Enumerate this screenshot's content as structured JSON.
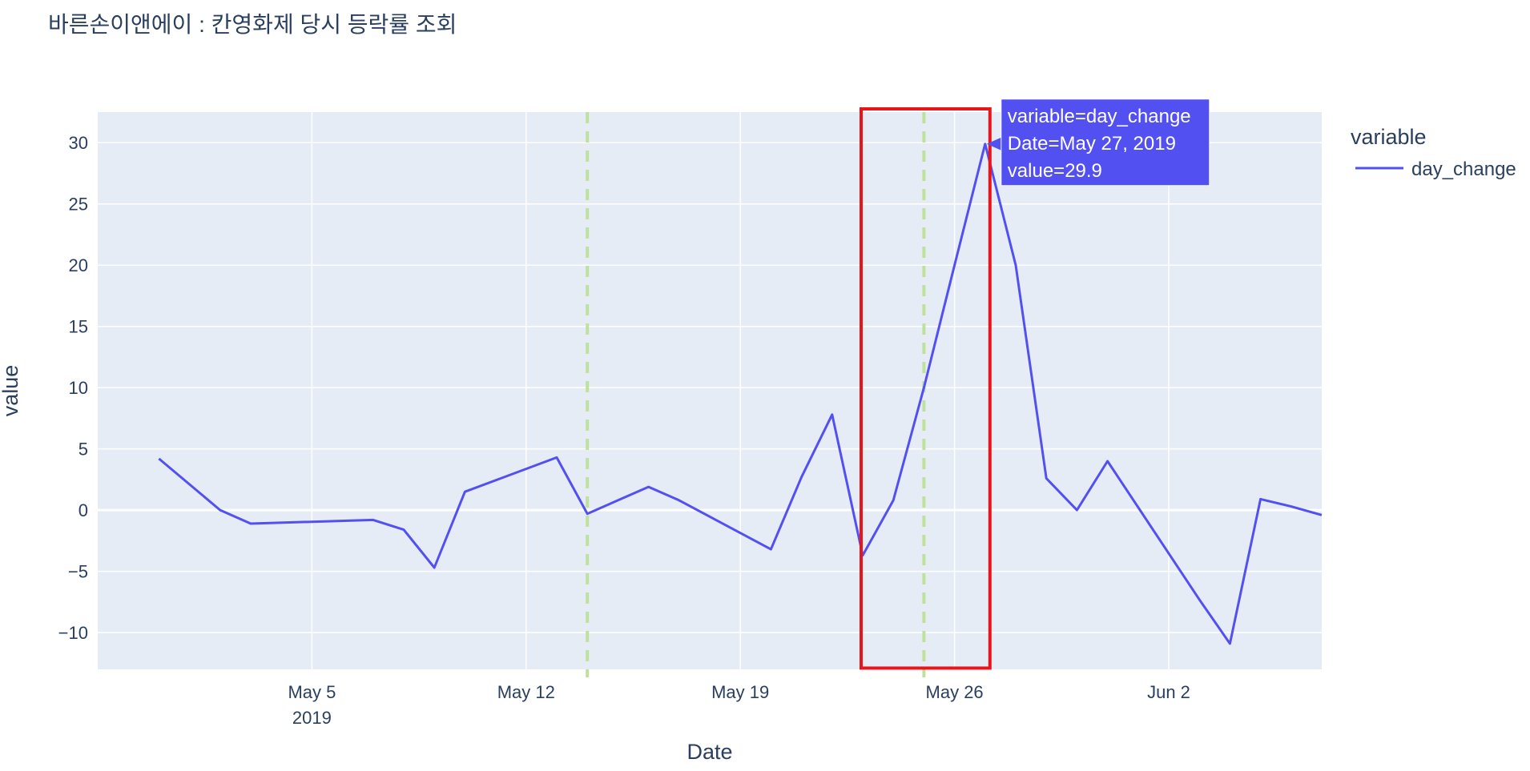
{
  "chart_data": {
    "type": "line",
    "title": "바른손이앤에이 : 칸영화제 당시 등락률 조회",
    "xlabel": "Date",
    "ylabel": "value",
    "xlim": [
      "2019-04-28",
      "2019-06-07"
    ],
    "ylim": [
      -13,
      32.5
    ],
    "x_ticks": [
      {
        "date": "2019-05-05",
        "label": "May 5",
        "sublabel": "2019"
      },
      {
        "date": "2019-05-12",
        "label": "May 12",
        "sublabel": ""
      },
      {
        "date": "2019-05-19",
        "label": "May 19",
        "sublabel": ""
      },
      {
        "date": "2019-05-26",
        "label": "May 26",
        "sublabel": ""
      },
      {
        "date": "2019-06-02",
        "label": "Jun 2",
        "sublabel": ""
      }
    ],
    "y_ticks": [
      -10,
      -5,
      0,
      5,
      10,
      15,
      20,
      25,
      30
    ],
    "y_tick_labels": [
      "−10",
      "−5",
      "0",
      "5",
      "10",
      "15",
      "20",
      "25",
      "30"
    ],
    "grid": true,
    "legend": {
      "title": "variable",
      "placement": "top-right"
    },
    "series": [
      {
        "name": "day_change",
        "color": "#5350f2",
        "x": [
          "2019-04-30",
          "2019-05-02",
          "2019-05-03",
          "2019-05-07",
          "2019-05-08",
          "2019-05-09",
          "2019-05-10",
          "2019-05-13",
          "2019-05-14",
          "2019-05-16",
          "2019-05-17",
          "2019-05-20",
          "2019-05-21",
          "2019-05-22",
          "2019-05-23",
          "2019-05-24",
          "2019-05-25",
          "2019-05-26",
          "2019-05-27",
          "2019-05-28",
          "2019-05-29",
          "2019-05-30",
          "2019-05-31",
          "2019-06-03",
          "2019-06-04",
          "2019-06-05",
          "2019-06-06",
          "2019-06-07"
        ],
        "values": [
          4.2,
          0.0,
          -1.1,
          -0.8,
          -1.6,
          -4.7,
          1.5,
          4.3,
          -0.3,
          1.9,
          0.8,
          -3.2,
          2.7,
          7.8,
          -3.7,
          0.8,
          10.0,
          20.0,
          29.9,
          20.0,
          2.6,
          0.0,
          4.0,
          -7.3,
          -10.9,
          0.9,
          0.3,
          -0.4
        ]
      }
    ],
    "vlines": [
      {
        "date": "2019-05-14",
        "color": "#bde39a",
        "style": "dashed"
      },
      {
        "date": "2019-05-25",
        "color": "#bde39a",
        "style": "dashed"
      }
    ],
    "highlight_box": {
      "x_start": "2019-05-23",
      "x_end": "2019-05-27",
      "y_start": -12.9,
      "y_end": 32.5,
      "color": "#e8161b"
    },
    "hover": {
      "lines": [
        "variable=day_change",
        "Date=May 27, 2019",
        "value=29.9"
      ],
      "x": "2019-05-27",
      "y": 29.9,
      "bg_color": "#5350f2"
    }
  }
}
